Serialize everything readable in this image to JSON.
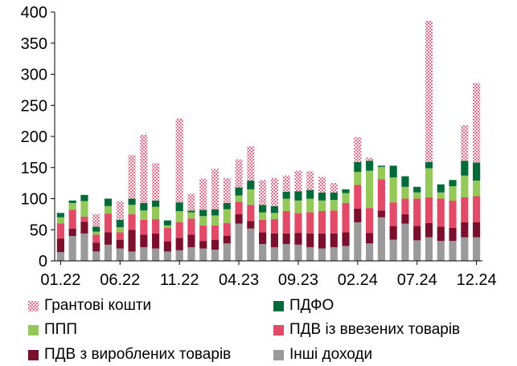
{
  "chart_data": {
    "type": "bar",
    "stacked": true,
    "ylim": [
      0,
      400
    ],
    "yticks": [
      0,
      50,
      100,
      150,
      200,
      250,
      300,
      350,
      400
    ],
    "xtick_labels": [
      "01.22",
      "06.22",
      "11.22",
      "04.23",
      "09.23",
      "02.24",
      "07.24",
      "12.24"
    ],
    "xtick_positions": [
      0,
      5,
      10,
      15,
      20,
      25,
      30,
      35
    ],
    "categories": [
      "01.22",
      "02.22",
      "03.22",
      "04.22",
      "05.22",
      "06.22",
      "07.22",
      "08.22",
      "09.22",
      "10.22",
      "11.22",
      "12.22",
      "01.23",
      "02.23",
      "03.23",
      "04.23",
      "05.23",
      "06.23",
      "07.23",
      "08.23",
      "09.23",
      "10.23",
      "11.23",
      "12.23",
      "01.24",
      "02.24",
      "03.24",
      "04.24",
      "05.24",
      "06.24",
      "07.24",
      "08.24",
      "09.24",
      "10.24",
      "11.24",
      "12.24"
    ],
    "series": [
      {
        "name": "Інші доходи",
        "color": "#9a9a9a",
        "values": [
          14,
          40,
          44,
          15,
          26,
          20,
          15,
          22,
          20,
          15,
          17,
          22,
          20,
          18,
          28,
          60,
          52,
          27,
          22,
          27,
          26,
          22,
          20,
          22,
          24,
          62,
          28,
          70,
          34,
          60,
          33,
          38,
          32,
          32,
          38,
          38
        ]
      },
      {
        "name": "ПДВ з вироблених товарів",
        "color": "#7a0f2e",
        "values": [
          22,
          12,
          19,
          14,
          20,
          14,
          35,
          20,
          24,
          16,
          20,
          20,
          12,
          16,
          12,
          15,
          12,
          19,
          22,
          17,
          19,
          22,
          24,
          22,
          22,
          22,
          17,
          11,
          22,
          15,
          23,
          23,
          23,
          21,
          24,
          24
        ]
      },
      {
        "name": "ПДВ із ввезених товарів",
        "color": "#e34a67",
        "values": [
          24,
          30,
          8,
          13,
          30,
          12,
          25,
          24,
          23,
          22,
          25,
          26,
          25,
          23,
          21,
          20,
          26,
          20,
          23,
          36,
          32,
          34,
          36,
          37,
          47,
          38,
          40,
          50,
          38,
          25,
          44,
          41,
          45,
          44,
          40,
          42
        ]
      },
      {
        "name": "ППП",
        "color": "#94c95a",
        "values": [
          10,
          11,
          25,
          5,
          12,
          8,
          15,
          15,
          20,
          4,
          18,
          10,
          15,
          16,
          22,
          10,
          25,
          12,
          10,
          20,
          20,
          22,
          17,
          17,
          16,
          21,
          60,
          20,
          40,
          19,
          10,
          47,
          10,
          23,
          35,
          25
        ]
      },
      {
        "name": "ПДФО",
        "color": "#006a3a",
        "values": [
          7,
          4,
          10,
          8,
          12,
          12,
          10,
          12,
          10,
          8,
          14,
          3,
          10,
          10,
          10,
          13,
          14,
          12,
          11,
          11,
          15,
          14,
          13,
          12,
          6,
          16,
          16,
          2,
          19,
          17,
          9,
          10,
          13,
          10,
          24,
          29
        ]
      },
      {
        "name": "Грантові кошти",
        "color": "#e8a0b0",
        "pattern": true,
        "values": [
          0,
          0,
          0,
          20,
          0,
          30,
          70,
          110,
          60,
          0,
          135,
          27,
          50,
          65,
          40,
          45,
          55,
          40,
          45,
          26,
          33,
          30,
          25,
          15,
          0,
          40,
          5,
          0,
          0,
          0,
          0,
          227,
          0,
          0,
          57,
          128
        ]
      }
    ],
    "legend": [
      {
        "name": "Грантові кошти",
        "color": "#e8a0b0",
        "pattern": true
      },
      {
        "name": "ПДФО",
        "color": "#006a3a"
      },
      {
        "name": "ППП",
        "color": "#94c95a"
      },
      {
        "name": "ПДВ із ввезених товарів",
        "color": "#e34a67"
      },
      {
        "name": "ПДВ з вироблених товарів",
        "color": "#7a0f2e"
      },
      {
        "name": "Інші доходи",
        "color": "#9a9a9a"
      }
    ],
    "legend_placement": "bottom",
    "grid": false
  }
}
